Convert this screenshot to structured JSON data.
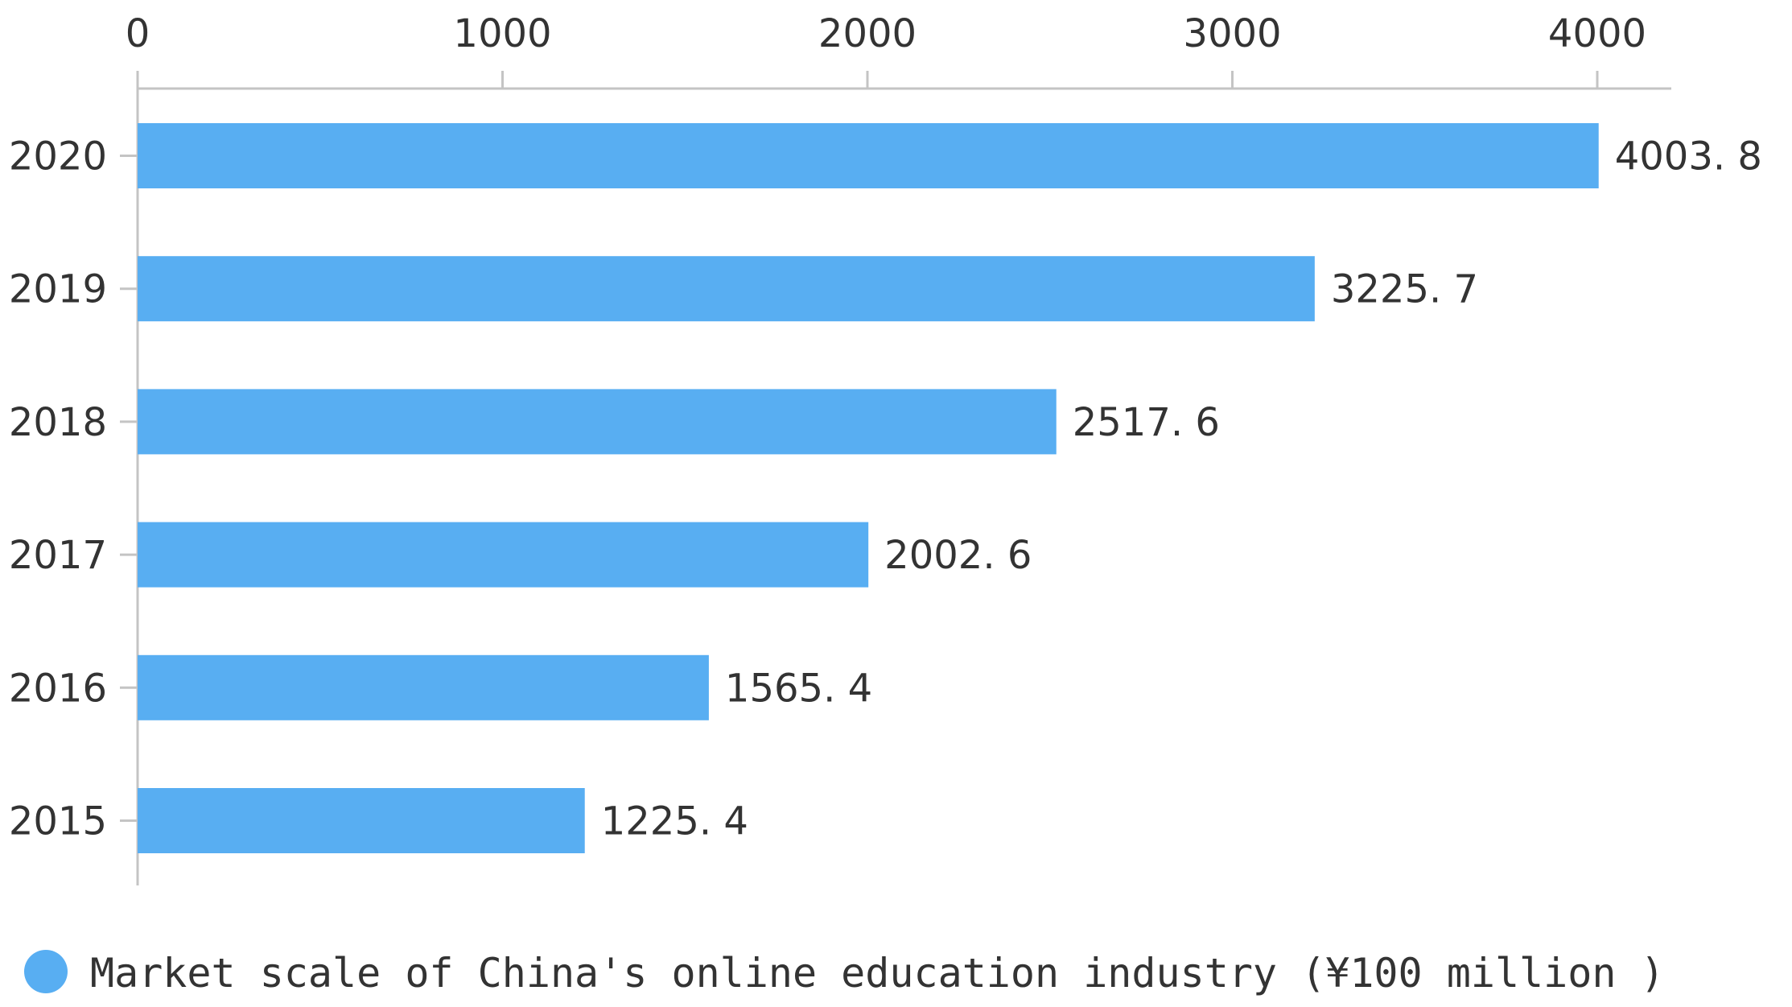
{
  "chart_data": {
    "type": "bar",
    "orientation": "horizontal",
    "categories": [
      "2020",
      "2019",
      "2018",
      "2017",
      "2016",
      "2015"
    ],
    "series": [
      {
        "name": "Market scale of China's online education industry (¥100 million )",
        "values": [
          4003.8,
          3225.7,
          2517.6,
          2002.6,
          1565.4,
          1225.4
        ],
        "value_labels": [
          "4003. 8",
          "3225. 7",
          "2517. 6",
          "2002. 6",
          "1565. 4",
          "1225. 4"
        ]
      }
    ],
    "x_ticks": [
      "0",
      "1000",
      "2000",
      "3000",
      "4000"
    ],
    "xlim": [
      0,
      4200
    ],
    "x_axis_position": "top",
    "grid": false,
    "legend_position": "bottom-left",
    "colors": {
      "bar": "#58aef2",
      "axis": "#c4c4c4"
    }
  }
}
